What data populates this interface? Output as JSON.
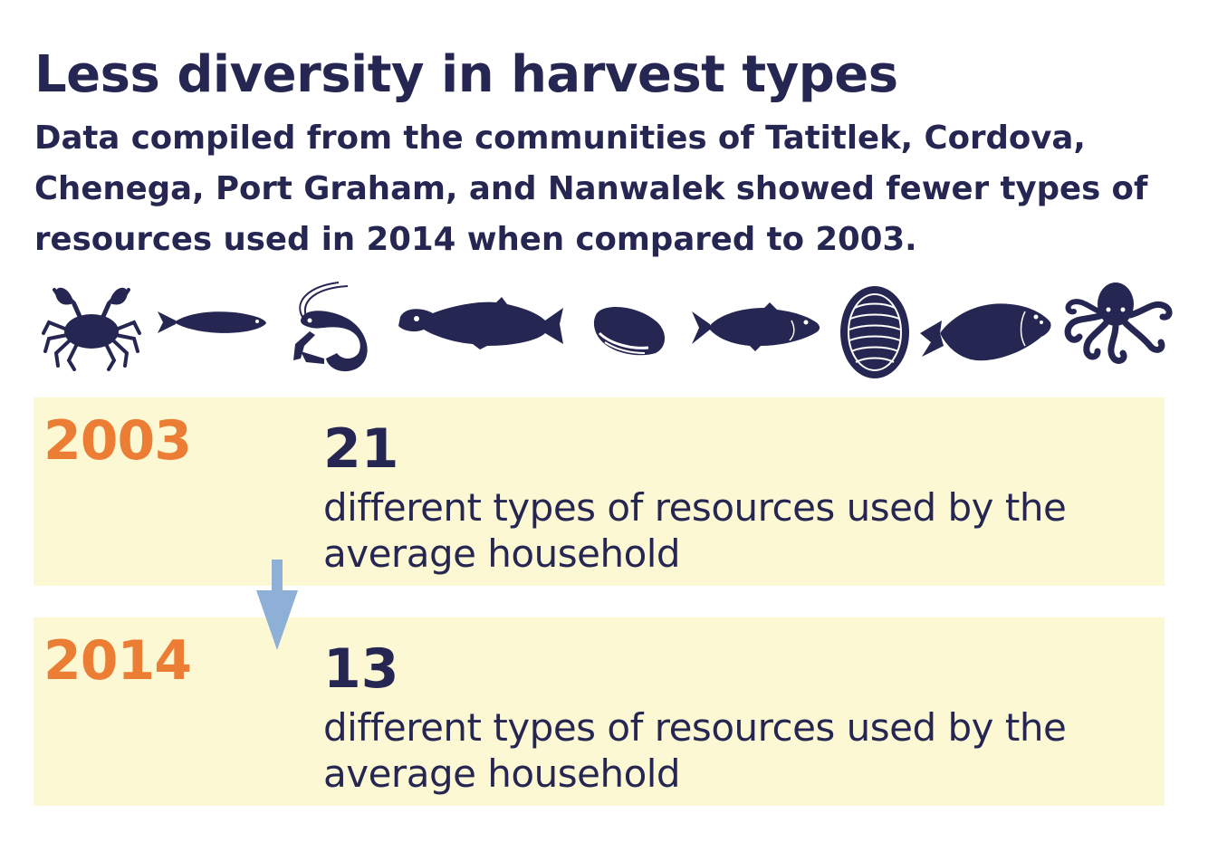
{
  "header": {
    "title": "Less diversity in harvest types",
    "subtitle": "Data compiled from the communities of Tatitlek, Cordova, Chenega, Port Graham, and Nanwalek showed fewer types of resources used in 2014 when compared to 2003."
  },
  "icons": [
    "crab-icon",
    "herring-icon",
    "shrimp-icon",
    "salmon-icon",
    "mussel-icon",
    "cod-icon",
    "chiton-icon",
    "halibut-icon",
    "octopus-icon"
  ],
  "colors": {
    "navy": "#262652",
    "orange": "#eb7d34",
    "panel": "#fdf8d4",
    "arrow": "#8fb0d6"
  },
  "comparison": [
    {
      "year": "2003",
      "count": "21",
      "description": "different types of resources used by the average household"
    },
    {
      "year": "2014",
      "count": "13",
      "description": "different types of resources used by the average household"
    }
  ]
}
